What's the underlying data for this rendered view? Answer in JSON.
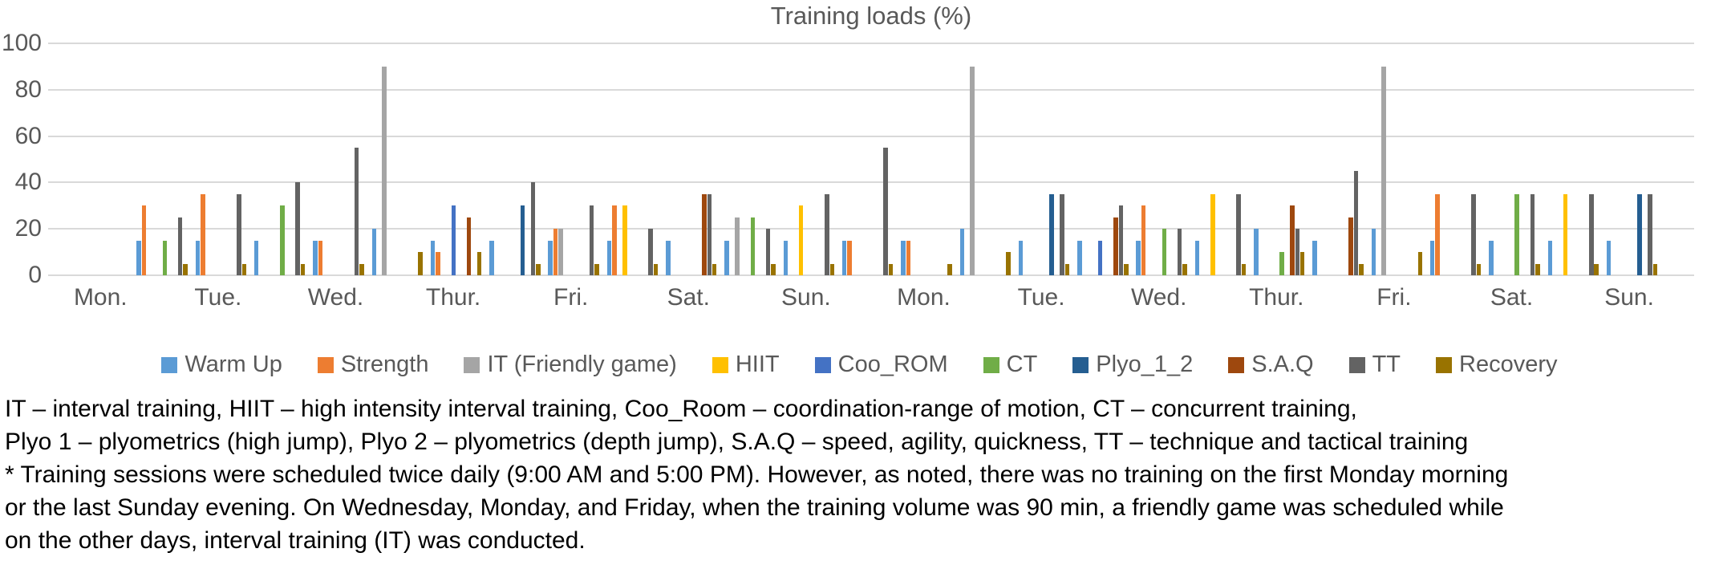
{
  "chart_data": {
    "type": "bar",
    "title": "Training loads (%)",
    "xlabel": "",
    "ylabel": "",
    "ylim": [
      0,
      100
    ],
    "yticks": [
      0,
      20,
      40,
      60,
      80,
      100
    ],
    "grid": true,
    "legend_position": "bottom",
    "categories": [
      "Mon.",
      "Tue.",
      "Wed.",
      "Thur.",
      "Fri.",
      "Sat.",
      "Sun.",
      "Mon.",
      "Tue.",
      "Wed.",
      "Thur.",
      "Fri.",
      "Sat.",
      "Sun."
    ],
    "sessions_per_category": 2,
    "series": [
      {
        "name": "Warm Up",
        "color": "#5B9BD5",
        "values": [
          0,
          15,
          15,
          15,
          15,
          20,
          15,
          15,
          15,
          15,
          15,
          15,
          15,
          15,
          15,
          20,
          15,
          15,
          15,
          15,
          20,
          15,
          20,
          15,
          15,
          15,
          15,
          0
        ]
      },
      {
        "name": "Strength",
        "color": "#ED7D31",
        "values": [
          0,
          30,
          35,
          0,
          15,
          0,
          10,
          0,
          20,
          30,
          0,
          0,
          0,
          15,
          15,
          0,
          0,
          0,
          30,
          0,
          0,
          0,
          0,
          35,
          0,
          0,
          0,
          0
        ]
      },
      {
        "name": "IT (Friendly game)",
        "color": "#A5A5A5",
        "values": [
          0,
          0,
          0,
          0,
          0,
          90,
          0,
          0,
          20,
          0,
          0,
          25,
          0,
          0,
          0,
          90,
          0,
          0,
          0,
          0,
          0,
          0,
          90,
          0,
          0,
          0,
          0,
          0
        ]
      },
      {
        "name": "HIIT",
        "color": "#FFC000",
        "values": [
          0,
          0,
          0,
          0,
          0,
          0,
          0,
          0,
          0,
          30,
          0,
          0,
          30,
          0,
          0,
          0,
          0,
          0,
          0,
          35,
          0,
          0,
          0,
          0,
          0,
          35,
          0,
          0
        ]
      },
      {
        "name": "Coo_ROM",
        "color": "#4472C4",
        "values": [
          0,
          0,
          0,
          0,
          0,
          0,
          30,
          0,
          0,
          0,
          0,
          0,
          0,
          0,
          0,
          0,
          0,
          15,
          0,
          0,
          0,
          0,
          0,
          0,
          0,
          0,
          0,
          0
        ]
      },
      {
        "name": "CT",
        "color": "#70AD47",
        "values": [
          0,
          15,
          0,
          30,
          0,
          0,
          0,
          0,
          0,
          0,
          0,
          25,
          0,
          0,
          0,
          0,
          0,
          0,
          20,
          0,
          10,
          0,
          0,
          0,
          35,
          0,
          0,
          0
        ]
      },
      {
        "name": "Plyo_1_2",
        "color": "#255E91",
        "values": [
          0,
          0,
          0,
          0,
          0,
          0,
          0,
          30,
          0,
          0,
          0,
          0,
          0,
          0,
          0,
          0,
          35,
          0,
          0,
          0,
          0,
          0,
          0,
          0,
          0,
          0,
          35,
          0
        ]
      },
      {
        "name": "S.A.Q",
        "color": "#9E480E",
        "values": [
          0,
          0,
          0,
          0,
          0,
          0,
          25,
          0,
          0,
          0,
          35,
          0,
          0,
          0,
          0,
          0,
          0,
          25,
          0,
          0,
          30,
          25,
          0,
          0,
          0,
          0,
          0,
          0
        ]
      },
      {
        "name": "TT",
        "color": "#636363",
        "values": [
          0,
          25,
          35,
          40,
          55,
          0,
          0,
          40,
          30,
          20,
          35,
          20,
          35,
          55,
          0,
          0,
          35,
          30,
          20,
          35,
          20,
          45,
          0,
          35,
          35,
          35,
          35,
          0
        ]
      },
      {
        "name": "Recovery",
        "color": "#997300",
        "values": [
          0,
          5,
          5,
          5,
          5,
          10,
          10,
          5,
          5,
          5,
          5,
          5,
          5,
          5,
          5,
          10,
          5,
          5,
          5,
          5,
          10,
          5,
          10,
          5,
          5,
          5,
          5,
          0
        ]
      }
    ]
  },
  "footnote_lines": [
    "IT – interval training, HIIT – high intensity interval training, Coo_Room – coordination-range of motion, CT – concurrent training,",
    "Plyo 1 – plyometrics (high jump), Plyo 2 – plyometrics (depth jump), S.A.Q – speed, agility, quickness, TT – technique and tactical training",
    "* Training sessions were scheduled twice daily (9:00 AM and 5:00 PM). However, as noted, there was no training on the first Monday morning",
    "or the last Sunday evening. On Wednesday, Monday, and Friday, when the training volume was 90 min, a friendly game was scheduled while",
    "on the other days, interval training (IT) was conducted."
  ]
}
